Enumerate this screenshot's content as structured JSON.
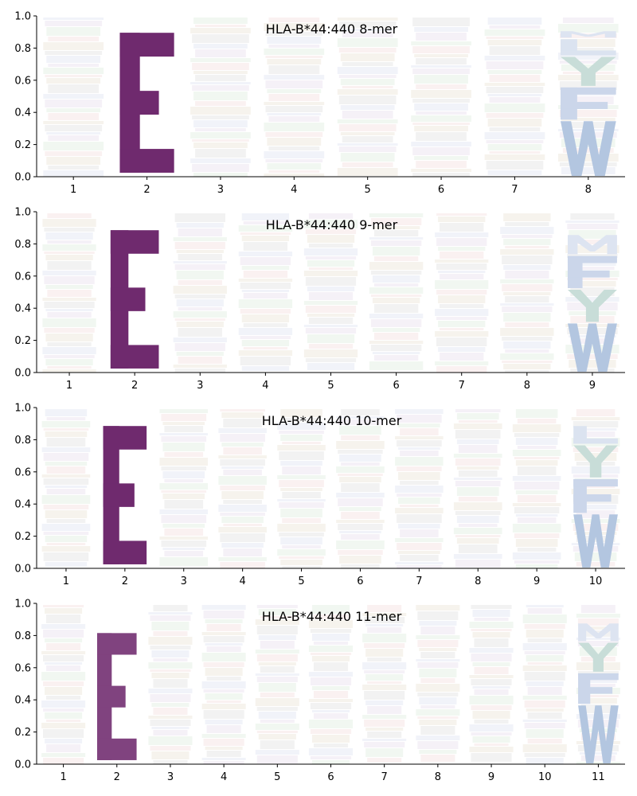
{
  "colors": {
    "E": "#6f2a6e",
    "W": "#b3c6e0",
    "Y": "#c8ddd8",
    "F": "#cbd6ea",
    "L": "#dbe3f0",
    "M": "#dde4f1",
    "faint_palette": [
      "#eef1f8",
      "#f3eef6",
      "#eef6ef",
      "#f9eeee",
      "#f5f1ea",
      "#f0f0f0"
    ],
    "axis": "#000000"
  },
  "chart_data": [
    {
      "type": "logo",
      "title": "HLA-B*44:440 8-mer",
      "ylim": [
        0,
        1.0
      ],
      "yticks": [
        "0.0",
        "0.2",
        "0.4",
        "0.6",
        "0.8",
        "1.0"
      ],
      "positions": [
        "1",
        "2",
        "3",
        "4",
        "5",
        "6",
        "7",
        "8"
      ],
      "stacks": [
        {
          "pos": "1",
          "letters": []
        },
        {
          "pos": "2",
          "letters": [
            {
              "aa": "E",
              "height": 0.88
            }
          ],
          "base": 0.02
        },
        {
          "pos": "3",
          "letters": []
        },
        {
          "pos": "4",
          "letters": []
        },
        {
          "pos": "5",
          "letters": []
        },
        {
          "pos": "6",
          "letters": []
        },
        {
          "pos": "7",
          "letters": []
        },
        {
          "pos": "8",
          "letters": [
            {
              "aa": "W",
              "height": 0.35
            },
            {
              "aa": "F",
              "height": 0.21
            },
            {
              "aa": "Y",
              "height": 0.19
            },
            {
              "aa": "L",
              "height": 0.11
            },
            {
              "aa": "M",
              "height": 0.05
            }
          ],
          "base": 0.0
        }
      ]
    },
    {
      "type": "logo",
      "title": "HLA-B*44:440 9-mer",
      "ylim": [
        0,
        1.0
      ],
      "yticks": [
        "0.0",
        "0.2",
        "0.4",
        "0.6",
        "0.8",
        "1.0"
      ],
      "positions": [
        "1",
        "2",
        "3",
        "4",
        "5",
        "6",
        "7",
        "8",
        "9"
      ],
      "stacks": [
        {
          "pos": "1",
          "letters": []
        },
        {
          "pos": "2",
          "letters": [
            {
              "aa": "E",
              "height": 0.87
            }
          ],
          "base": 0.02
        },
        {
          "pos": "3",
          "letters": []
        },
        {
          "pos": "4",
          "letters": []
        },
        {
          "pos": "5",
          "letters": []
        },
        {
          "pos": "6",
          "letters": []
        },
        {
          "pos": "7",
          "letters": []
        },
        {
          "pos": "8",
          "letters": []
        },
        {
          "pos": "9",
          "letters": [
            {
              "aa": "W",
              "height": 0.31
            },
            {
              "aa": "Y",
              "height": 0.21
            },
            {
              "aa": "F",
              "height": 0.21
            },
            {
              "aa": "M",
              "height": 0.13
            }
          ],
          "base": 0.0
        }
      ]
    },
    {
      "type": "logo",
      "title": "HLA-B*44:440 10-mer",
      "ylim": [
        0,
        1.0
      ],
      "yticks": [
        "0.0",
        "0.2",
        "0.4",
        "0.6",
        "0.8",
        "1.0"
      ],
      "positions": [
        "1",
        "2",
        "3",
        "4",
        "5",
        "6",
        "7",
        "8",
        "9",
        "10"
      ],
      "stacks": [
        {
          "pos": "1",
          "letters": []
        },
        {
          "pos": "2",
          "letters": [
            {
              "aa": "E",
              "height": 0.87
            }
          ],
          "base": 0.02
        },
        {
          "pos": "3",
          "letters": []
        },
        {
          "pos": "4",
          "letters": []
        },
        {
          "pos": "5",
          "letters": []
        },
        {
          "pos": "6",
          "letters": []
        },
        {
          "pos": "7",
          "letters": []
        },
        {
          "pos": "8",
          "letters": []
        },
        {
          "pos": "9",
          "letters": []
        },
        {
          "pos": "10",
          "letters": [
            {
              "aa": "W",
              "height": 0.34
            },
            {
              "aa": "F",
              "height": 0.22
            },
            {
              "aa": "Y",
              "height": 0.21
            },
            {
              "aa": "L",
              "height": 0.12
            }
          ],
          "base": 0.0
        }
      ]
    },
    {
      "type": "logo",
      "title": "HLA-B*44:440 11-mer",
      "ylim": [
        0,
        1.0
      ],
      "yticks": [
        "0.0",
        "0.2",
        "0.4",
        "0.6",
        "0.8",
        "1.0"
      ],
      "positions": [
        "1",
        "2",
        "3",
        "4",
        "5",
        "6",
        "7",
        "8",
        "9",
        "10",
        "11"
      ],
      "stacks": [
        {
          "pos": "1",
          "letters": []
        },
        {
          "pos": "2",
          "letters": [
            {
              "aa": "E",
              "height": 0.8
            }
          ],
          "base": 0.02
        },
        {
          "pos": "3",
          "letters": []
        },
        {
          "pos": "4",
          "letters": []
        },
        {
          "pos": "5",
          "letters": []
        },
        {
          "pos": "6",
          "letters": []
        },
        {
          "pos": "7",
          "letters": []
        },
        {
          "pos": "8",
          "letters": []
        },
        {
          "pos": "9",
          "letters": []
        },
        {
          "pos": "10",
          "letters": []
        },
        {
          "pos": "11",
          "letters": [
            {
              "aa": "W",
              "height": 0.37
            },
            {
              "aa": "F",
              "height": 0.2
            },
            {
              "aa": "Y",
              "height": 0.19
            },
            {
              "aa": "M",
              "height": 0.12
            }
          ],
          "base": 0.0
        }
      ]
    }
  ]
}
